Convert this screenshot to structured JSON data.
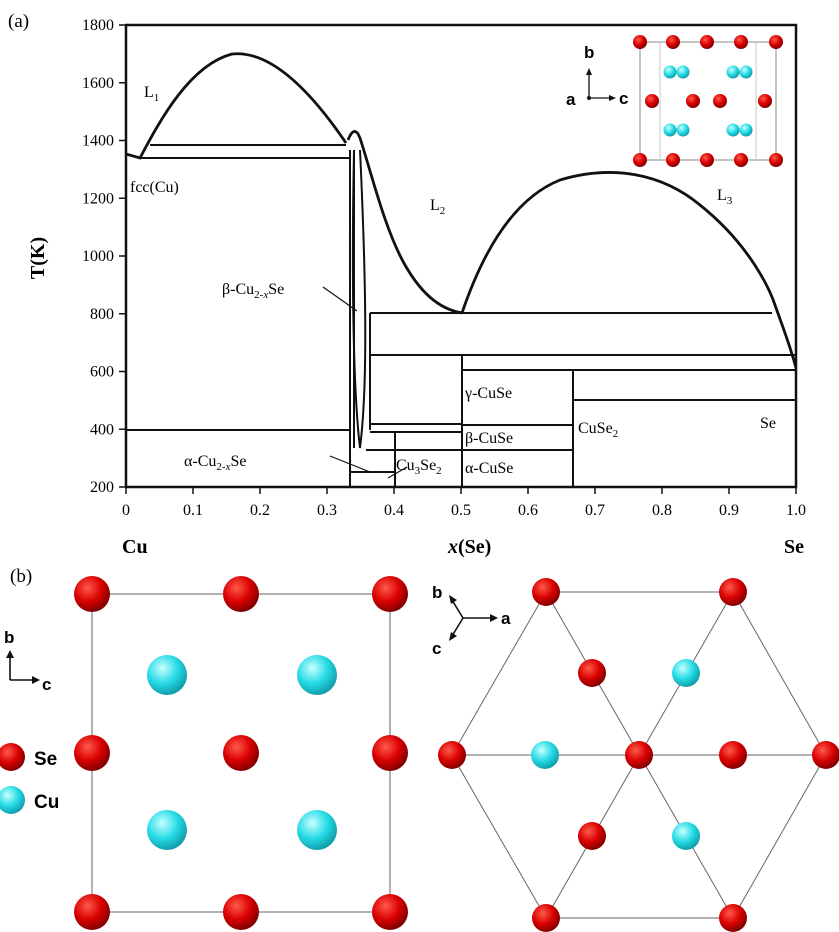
{
  "panel_a": {
    "label": "(a)",
    "ylabel": "T(K)",
    "xlabel_italic": "x",
    "xlabel_rest": "(Se)",
    "xlabel_left": "Cu",
    "xlabel_right": "Se",
    "x_ticks": [
      "0",
      "0.1",
      "0.2",
      "0.3",
      "0.4",
      "0.5",
      "0.6",
      "0.7",
      "0.8",
      "0.9",
      "1.0"
    ],
    "y_ticks": [
      "200",
      "400",
      "600",
      "800",
      "1000",
      "1200",
      "1400",
      "1600",
      "1800"
    ],
    "regions": {
      "L1": {
        "base": "L",
        "sub": "1"
      },
      "L2": {
        "base": "L",
        "sub": "2"
      },
      "L3": {
        "base": "L",
        "sub": "3"
      },
      "fcc": "fcc(Cu)",
      "beta_cu2se": {
        "pre": "β-Cu",
        "sub": "2-",
        "subx": "x",
        "post": "Se"
      },
      "alpha_cu2se": {
        "pre": "α-Cu",
        "sub": "2-",
        "subx": "x",
        "post": "Se"
      },
      "cu3se2": {
        "pre": "Cu",
        "sub1": "3",
        "mid": "Se",
        "sub2": "2"
      },
      "gamma_cuse": "γ-CuSe",
      "beta_cuse": "β-CuSe",
      "alpha_cuse": "α-CuSe",
      "cuse2": {
        "pre": "CuSe",
        "sub": "2"
      },
      "se": "Se"
    },
    "inset_axes": {
      "b": "b",
      "a": "a",
      "c": "c"
    }
  },
  "panel_b": {
    "label": "(b)",
    "left_axes": {
      "b": "b",
      "c": "c"
    },
    "right_axes": {
      "b": "b",
      "a": "a",
      "c": "c"
    },
    "legend": [
      {
        "name": "Se",
        "color": "#d40000"
      },
      {
        "name": "Cu",
        "color": "#22d3df"
      }
    ]
  },
  "chart_data": {
    "type": "line",
    "title": "",
    "xlabel": "x(Se)",
    "ylabel": "T(K)",
    "xlim": [
      0,
      1.0
    ],
    "ylim": [
      200,
      1800
    ],
    "series": [
      {
        "name": "",
        "x": [
          0.0,
          0.02,
          0.05,
          0.1,
          0.16,
          0.2,
          0.25,
          0.3,
          0.33
        ],
        "y": [
          1355,
          1340,
          1420,
          1620,
          1700,
          1680,
          1580,
          1440,
          1385
        ]
      },
      {
        "name": "",
        "x": [
          0.335,
          0.345,
          0.36,
          0.4,
          0.45,
          0.5
        ],
        "y": [
          1400,
          1415,
          1360,
          1050,
          880,
          795
        ]
      },
      {
        "name": "",
        "x": [
          0.5,
          0.55,
          0.62,
          0.7,
          0.8,
          0.9,
          0.96,
          1.0
        ],
        "y": [
          795,
          1000,
          1190,
          1275,
          1250,
          1050,
          800,
          600
        ]
      }
    ]
  }
}
